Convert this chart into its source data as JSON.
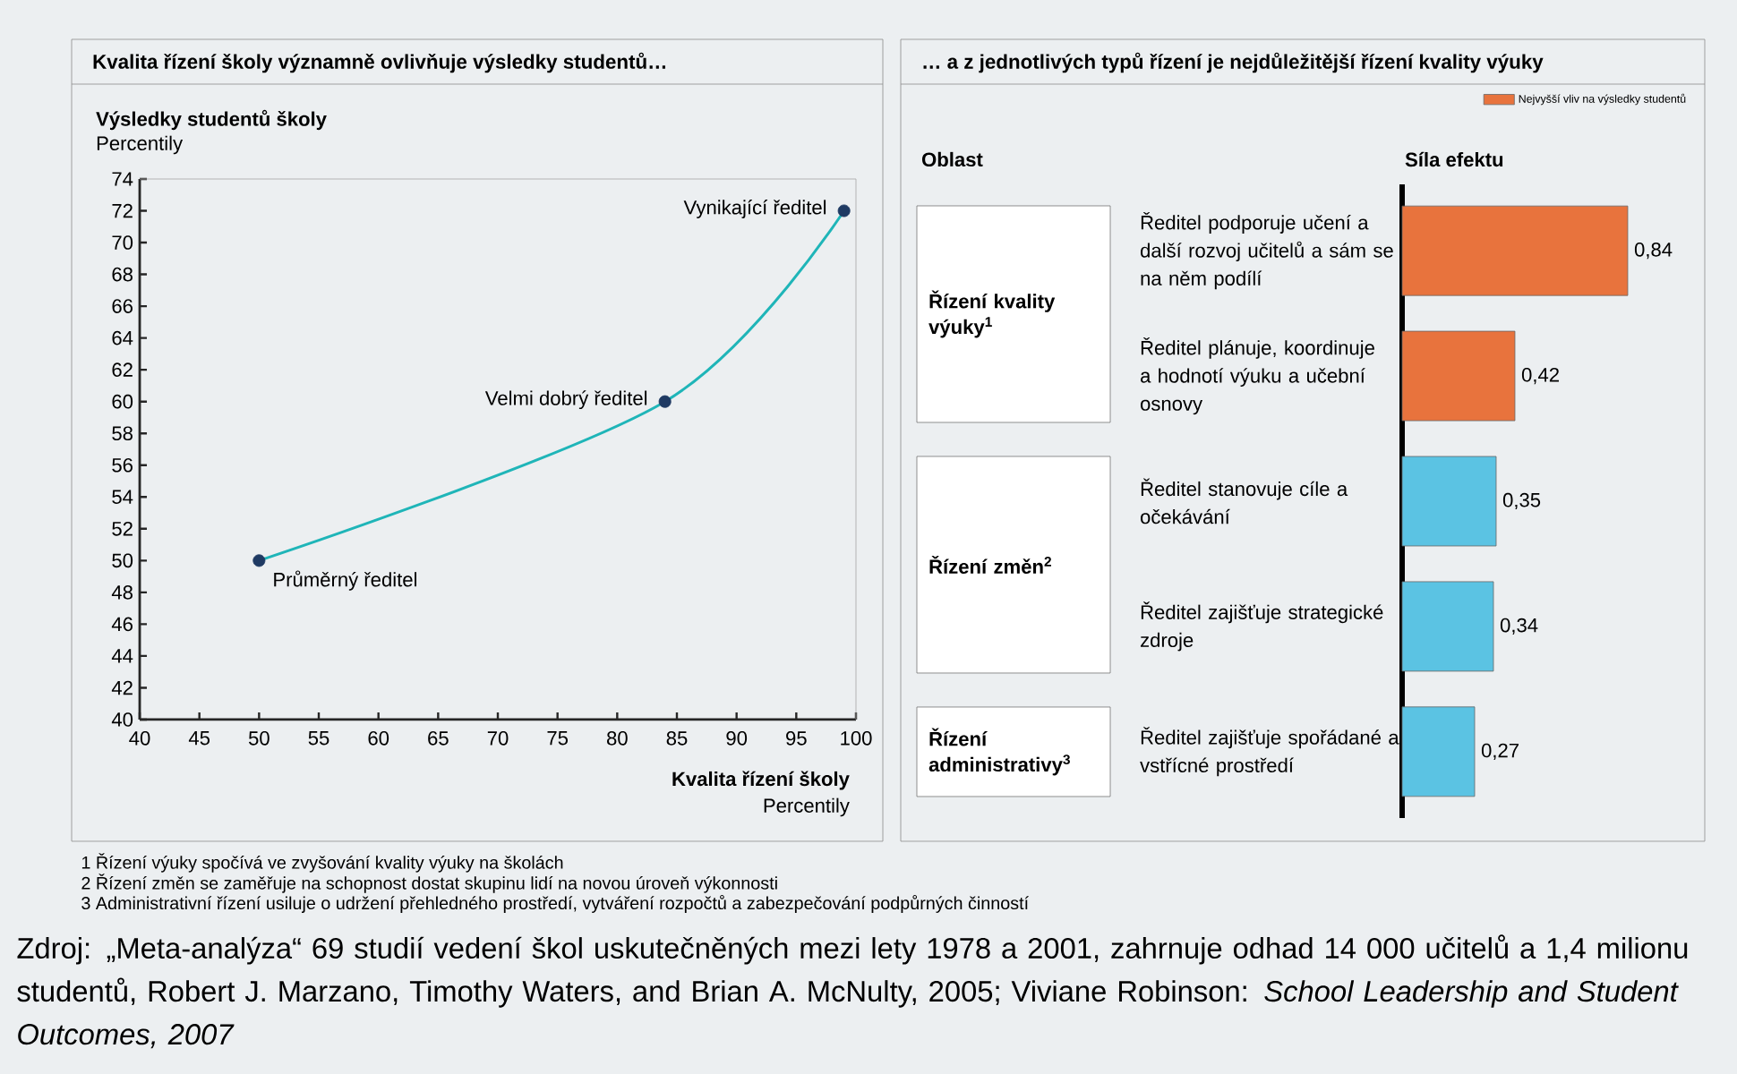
{
  "chart_data": [
    {
      "type": "line",
      "title": "Kvalita řízení školy významně ovlivňuje výsledky studentů…",
      "xlabel": "Kvalita řízení školy",
      "ylabel": "Výsledky studentů školy",
      "xlim": [
        40,
        100
      ],
      "xticks": [
        40,
        45,
        50,
        55,
        60,
        65,
        70,
        75,
        80,
        85,
        90,
        95,
        100
      ],
      "ylim": [
        40,
        74
      ],
      "yticks": [
        40,
        42,
        44,
        46,
        48,
        50,
        52,
        54,
        56,
        58,
        60,
        62,
        64,
        66,
        68,
        70,
        72,
        74
      ],
      "series": [
        {
          "type": "line",
          "color": "#1fb5b8",
          "x": [
            50,
            84,
            99
          ],
          "values": [
            50,
            60,
            72
          ]
        },
        {
          "type": "scatter",
          "color": "#1f3a63",
          "x": [
            50,
            84,
            99
          ],
          "values": [
            50,
            60,
            72
          ]
        }
      ],
      "annotations": [
        {
          "text": "Průměrný ředitel",
          "x": 50,
          "y": 50
        },
        {
          "text": "Velmi dobrý ředitel",
          "x": 84,
          "y": 60
        },
        {
          "text": "Vynikající ředitel",
          "x": 99,
          "y": 72
        },
        "Percentily",
        "Percentily"
      ]
    },
    {
      "type": "bar",
      "orientation": "horizontal",
      "title": "… a z jednotlivých typů řízení je nejdůležitější řízení kvality výuky",
      "xlabel": "Síla efektu",
      "legend": "top right",
      "categories": [
        "Ředitel podporuje učení a další rozvoj učitelů a sám se na něm podílí",
        "Ředitel plánuje, koordinuje a hodnotí výuku a učební osnovy",
        "Ředitel stanovuje cíle a očekávání",
        "Ředitel zajišťuje strategické zdroje",
        "Ředitel zajišťuje spořádané a vstřícné prostředí"
      ],
      "series": [
        {
          "name": "Nejvyšší vliv na výsledky studentů",
          "color": "#e8733d",
          "values": [
            0.84,
            0.42,
            null,
            null,
            null
          ],
          "value_labels": [
            "0,84",
            "0,42",
            null,
            null,
            null
          ]
        },
        {
          "color": "#5bc3e3",
          "values": [
            null,
            null,
            0.35,
            0.34,
            0.27
          ],
          "value_labels": [
            null,
            null,
            "0,35",
            "0,34",
            "0,27"
          ]
        }
      ],
      "annotations": [
        "Oblast",
        "Řízení kvality výuky$^{1}$",
        "Řízení změn$^{2}$",
        "Řízení administrativy$^{3}$",
        "1 Řízení výuky spočívá ve zvyšování kvality výuky na školách",
        "2 Řízení změn se zaměřuje na schopnost dostat skupinu lidí na novou úroveň výkonnosti",
        "3 Administrativní řízení usiluje o udržení přehledného prostředí, vytváření rozpočtů a zabezpečování podpůrných činností",
        "Zdroj: „Meta-analýza“ 69 studií vedení škol uskutečněných mezi lety 1978 a 2001, zahrnuje odhad 14 000 učitelů a 1,4 milionu studentů, Robert J. Marzano, Timothy Waters, and Brian A. McNulty, 2005; Viviane Robinson: *School Leadership and Student Outcomes, 2007*"
      ]
    }
  ]
}
